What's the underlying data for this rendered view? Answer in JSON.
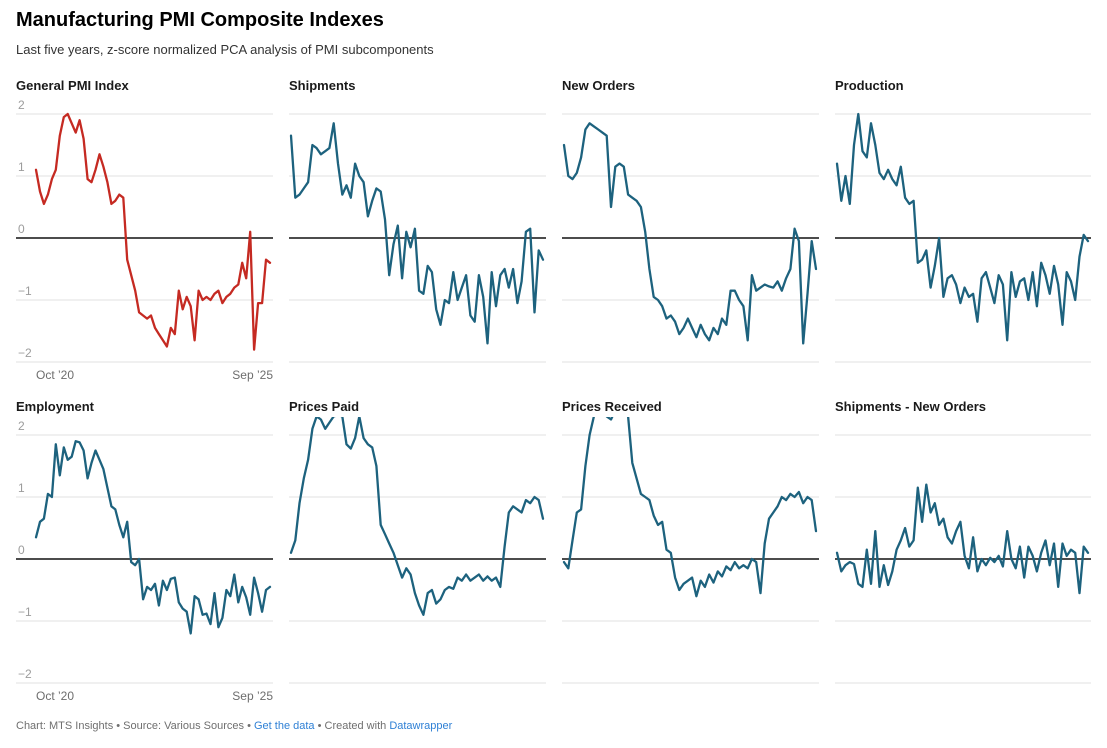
{
  "header": {
    "title": "Manufacturing PMI Composite Indexes",
    "subtitle": "Last five years, z-score normalized PCA analysis of PMI subcomponents"
  },
  "footer": {
    "credit_text": "Chart: MTS Insights • Source: Various Sources • ",
    "get_data_label": "Get the data",
    "created_with_text": " • Created with ",
    "datawrapper_label": "Datawrapper"
  },
  "colors": {
    "accent_red": "#c52a22",
    "series_teal": "#1d627e",
    "gridline": "#e2e2e2",
    "zero_line": "#111111",
    "tick_text": "#9c9c9c",
    "x_label_text": "#6d6d6d",
    "footer_text": "#6f6f6f",
    "link_blue": "#2f80d5"
  },
  "axis": {
    "x_start_label": "Oct ’20",
    "x_end_label": "Sep ’25",
    "y_ticks": [
      2,
      1,
      0,
      -1,
      -2
    ],
    "y_tick_labels": [
      "2",
      "1",
      "0",
      "−1",
      "−2"
    ],
    "ylim": [
      -2,
      2
    ],
    "x_months": 60,
    "grid": "horizontal-only",
    "y_axis_shown_on": "first column only",
    "x_axis_shown_on": "first column only"
  },
  "chart_data": [
    {
      "type": "line",
      "title": "General PMI Index",
      "color": "#c52a22",
      "x_range": [
        "Oct 2020",
        "Sep 2025"
      ],
      "values": [
        1.1,
        0.75,
        0.55,
        0.7,
        0.95,
        1.1,
        1.65,
        1.95,
        2.0,
        1.85,
        1.7,
        1.9,
        1.6,
        0.95,
        0.9,
        1.1,
        1.35,
        1.15,
        0.9,
        0.55,
        0.6,
        0.7,
        0.65,
        -0.35,
        -0.6,
        -0.85,
        -1.2,
        -1.25,
        -1.3,
        -1.25,
        -1.45,
        -1.55,
        -1.65,
        -1.75,
        -1.45,
        -1.55,
        -0.85,
        -1.15,
        -0.95,
        -1.1,
        -1.65,
        -0.85,
        -1.0,
        -0.95,
        -1.0,
        -0.9,
        -0.85,
        -1.05,
        -0.95,
        -0.9,
        -0.8,
        -0.75,
        -0.4,
        -0.65,
        0.1,
        -1.8,
        -1.05,
        -1.05,
        -0.35,
        -0.4
      ]
    },
    {
      "type": "line",
      "title": "Shipments",
      "color": "#1d627e",
      "x_range": [
        "Oct 2020",
        "Sep 2025"
      ],
      "values": [
        1.65,
        0.65,
        0.7,
        0.8,
        0.9,
        1.5,
        1.45,
        1.35,
        1.4,
        1.45,
        1.85,
        1.2,
        0.7,
        0.85,
        0.65,
        1.2,
        1.0,
        0.9,
        0.35,
        0.6,
        0.8,
        0.75,
        0.3,
        -0.6,
        -0.1,
        0.2,
        -0.65,
        0.1,
        -0.15,
        0.15,
        -0.85,
        -0.9,
        -0.45,
        -0.55,
        -1.15,
        -1.4,
        -1.0,
        -1.05,
        -0.55,
        -1.0,
        -0.8,
        -0.6,
        -1.25,
        -1.35,
        -0.6,
        -0.95,
        -1.7,
        -0.55,
        -1.1,
        -0.6,
        -0.5,
        -0.8,
        -0.5,
        -1.05,
        -0.7,
        0.1,
        0.15,
        -1.2,
        -0.2,
        -0.35
      ]
    },
    {
      "type": "line",
      "title": "New Orders",
      "color": "#1d627e",
      "x_range": [
        "Oct 2020",
        "Sep 2025"
      ],
      "values": [
        1.5,
        1.0,
        0.95,
        1.05,
        1.3,
        1.75,
        1.85,
        1.8,
        1.75,
        1.7,
        1.65,
        0.5,
        1.15,
        1.2,
        1.15,
        0.7,
        0.65,
        0.6,
        0.5,
        0.1,
        -0.5,
        -0.95,
        -1.0,
        -1.1,
        -1.3,
        -1.25,
        -1.35,
        -1.55,
        -1.45,
        -1.3,
        -1.45,
        -1.6,
        -1.4,
        -1.55,
        -1.65,
        -1.45,
        -1.55,
        -1.3,
        -1.4,
        -0.85,
        -0.85,
        -1.0,
        -1.1,
        -1.65,
        -0.6,
        -0.85,
        -0.8,
        -0.75,
        -0.78,
        -0.8,
        -0.7,
        -0.85,
        -0.65,
        -0.5,
        0.15,
        -0.05,
        -1.7,
        -0.9,
        -0.05,
        -0.5
      ]
    },
    {
      "type": "line",
      "title": "Production",
      "color": "#1d627e",
      "x_range": [
        "Oct 2020",
        "Sep 2025"
      ],
      "values": [
        1.2,
        0.6,
        1.0,
        0.55,
        1.5,
        2.0,
        1.4,
        1.3,
        1.85,
        1.5,
        1.05,
        0.95,
        1.1,
        0.95,
        0.85,
        1.15,
        0.65,
        0.55,
        0.6,
        -0.4,
        -0.35,
        -0.2,
        -0.8,
        -0.45,
        0.0,
        -0.95,
        -0.65,
        -0.6,
        -0.75,
        -1.05,
        -0.8,
        -0.95,
        -0.9,
        -1.35,
        -0.65,
        -0.55,
        -0.8,
        -1.05,
        -0.6,
        -0.75,
        -1.65,
        -0.55,
        -0.95,
        -0.7,
        -0.65,
        -1.0,
        -0.55,
        -1.1,
        -0.4,
        -0.6,
        -0.9,
        -0.45,
        -0.75,
        -1.4,
        -0.55,
        -0.7,
        -1.0,
        -0.3,
        0.05,
        -0.05
      ]
    },
    {
      "type": "line",
      "title": "Employment",
      "color": "#1d627e",
      "x_range": [
        "Oct 2020",
        "Sep 2025"
      ],
      "values": [
        0.35,
        0.6,
        0.65,
        1.05,
        1.0,
        1.85,
        1.35,
        1.8,
        1.6,
        1.65,
        1.9,
        1.88,
        1.75,
        1.3,
        1.55,
        1.75,
        1.6,
        1.45,
        1.15,
        0.85,
        0.8,
        0.55,
        0.35,
        0.6,
        -0.05,
        -0.1,
        0.0,
        -0.65,
        -0.45,
        -0.5,
        -0.4,
        -0.75,
        -0.35,
        -0.5,
        -0.32,
        -0.3,
        -0.7,
        -0.8,
        -0.85,
        -1.2,
        -0.6,
        -0.65,
        -0.9,
        -0.88,
        -1.05,
        -0.55,
        -1.1,
        -0.95,
        -0.5,
        -0.6,
        -0.25,
        -0.7,
        -0.45,
        -0.62,
        -0.9,
        -0.3,
        -0.55,
        -0.85,
        -0.5,
        -0.45
      ]
    },
    {
      "type": "line",
      "title": "Prices Paid",
      "color": "#1d627e",
      "x_range": [
        "Oct 2020",
        "Sep 2025"
      ],
      "values": [
        0.1,
        0.3,
        0.9,
        1.3,
        1.6,
        2.1,
        2.3,
        2.25,
        2.1,
        2.2,
        2.3,
        2.32,
        2.3,
        1.85,
        1.78,
        1.95,
        2.3,
        1.95,
        1.85,
        1.8,
        1.5,
        0.55,
        0.4,
        0.25,
        0.1,
        -0.1,
        -0.3,
        -0.15,
        -0.25,
        -0.55,
        -0.75,
        -0.9,
        -0.55,
        -0.5,
        -0.72,
        -0.65,
        -0.5,
        -0.45,
        -0.48,
        -0.3,
        -0.35,
        -0.25,
        -0.35,
        -0.3,
        -0.25,
        -0.35,
        -0.28,
        -0.35,
        -0.3,
        -0.45,
        0.2,
        0.75,
        0.85,
        0.8,
        0.75,
        0.95,
        0.9,
        1.0,
        0.95,
        0.65
      ]
    },
    {
      "type": "line",
      "title": "Prices Received",
      "color": "#1d627e",
      "x_range": [
        "Oct 2020",
        "Sep 2025"
      ],
      "values": [
        -0.05,
        -0.15,
        0.3,
        0.75,
        0.8,
        1.5,
        2.0,
        2.3,
        2.4,
        2.38,
        2.3,
        2.25,
        2.4,
        2.42,
        2.4,
        2.3,
        1.55,
        1.3,
        1.05,
        1.0,
        0.95,
        0.7,
        0.55,
        0.6,
        0.15,
        0.1,
        -0.3,
        -0.5,
        -0.4,
        -0.35,
        -0.3,
        -0.6,
        -0.35,
        -0.45,
        -0.25,
        -0.38,
        -0.2,
        -0.28,
        -0.12,
        -0.18,
        -0.05,
        -0.15,
        -0.1,
        -0.15,
        0.0,
        -0.05,
        -0.55,
        0.25,
        0.65,
        0.75,
        0.85,
        1.0,
        0.95,
        1.05,
        1.0,
        1.08,
        0.9,
        1.0,
        0.95,
        0.45
      ]
    },
    {
      "type": "line",
      "title": "Shipments - New Orders",
      "color": "#1d627e",
      "x_range": [
        "Oct 2020",
        "Sep 2025"
      ],
      "values": [
        0.1,
        -0.2,
        -0.1,
        -0.05,
        -0.08,
        -0.4,
        -0.45,
        0.15,
        -0.4,
        0.45,
        -0.45,
        -0.1,
        -0.42,
        -0.2,
        0.15,
        0.3,
        0.5,
        0.2,
        0.3,
        1.15,
        0.6,
        1.2,
        0.75,
        0.9,
        0.55,
        0.65,
        0.35,
        0.25,
        0.45,
        0.6,
        0.05,
        -0.15,
        0.35,
        -0.2,
        0.0,
        -0.1,
        0.02,
        -0.05,
        0.05,
        -0.12,
        0.45,
        0.0,
        -0.15,
        0.2,
        -0.3,
        0.2,
        0.05,
        -0.2,
        0.1,
        0.3,
        -0.1,
        0.25,
        -0.45,
        0.25,
        0.05,
        0.15,
        0.1,
        -0.55,
        0.2,
        0.1
      ]
    }
  ]
}
